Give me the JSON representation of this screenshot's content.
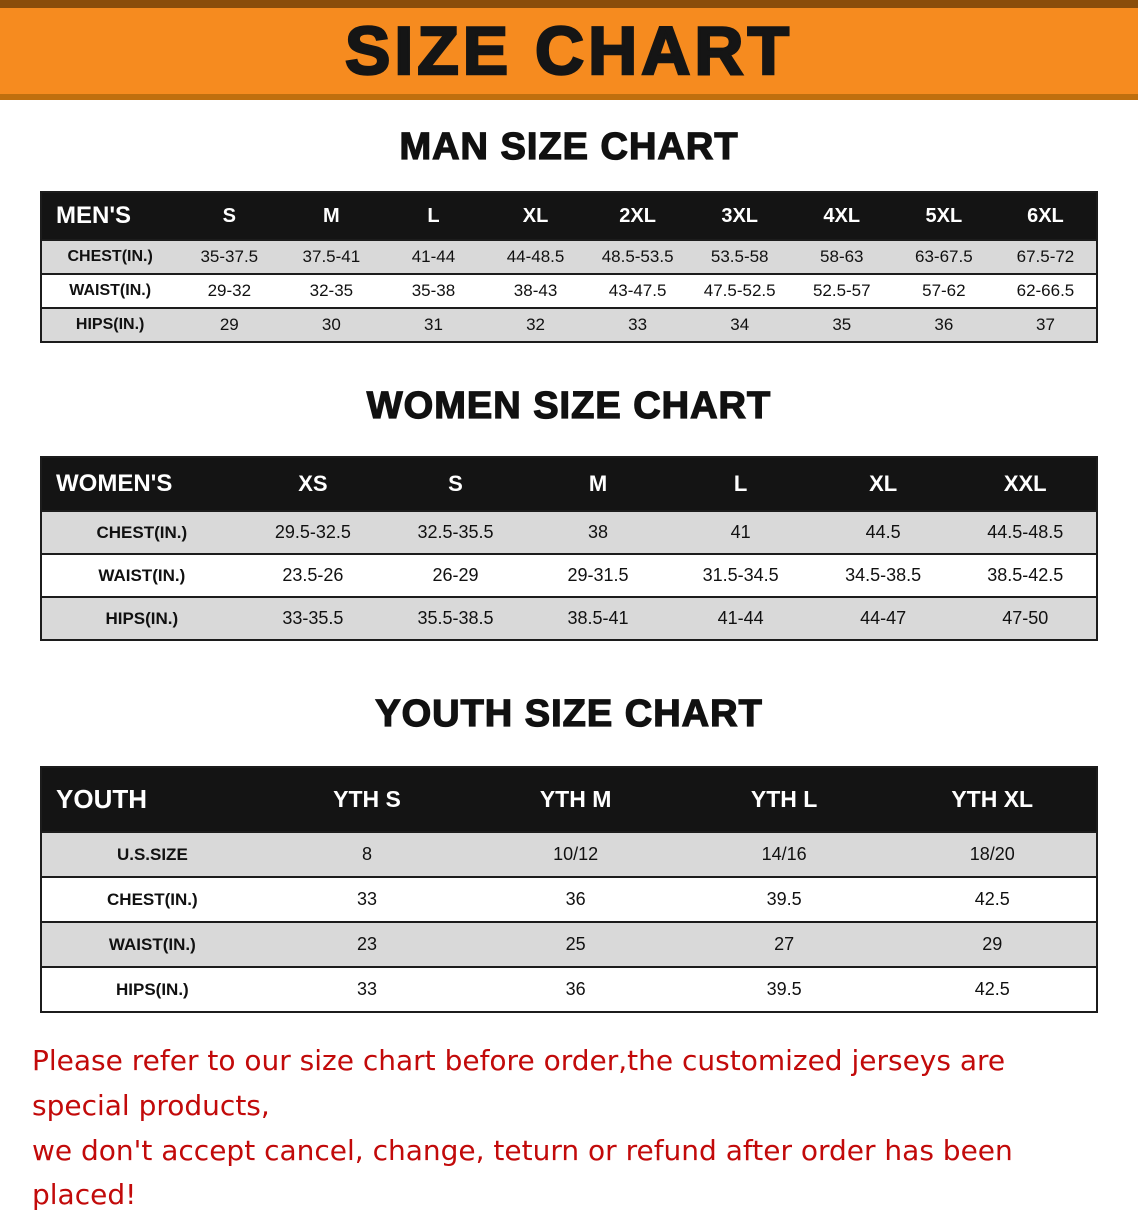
{
  "banner": {
    "title": "SIZE CHART"
  },
  "colors": {
    "banner_bg": "#f68b1f",
    "table_header_bg": "#141414",
    "row_shade": "#d9d9d9",
    "disclaimer_red": "#c20a0a"
  },
  "sections": [
    {
      "id": "men",
      "heading": "MAN SIZE CHART",
      "table": {
        "header": [
          "MEN'S",
          "S",
          "M",
          "L",
          "XL",
          "2XL",
          "3XL",
          "4XL",
          "5XL",
          "6XL"
        ],
        "rows": [
          {
            "label": "CHEST(IN.)",
            "values": [
              "35-37.5",
              "37.5-41",
              "41-44",
              "44-48.5",
              "48.5-53.5",
              "53.5-58",
              "58-63",
              "63-67.5",
              "67.5-72"
            ]
          },
          {
            "label": "WAIST(IN.)",
            "values": [
              "29-32",
              "32-35",
              "35-38",
              "38-43",
              "43-47.5",
              "47.5-52.5",
              "52.5-57",
              "57-62",
              "62-66.5"
            ]
          },
          {
            "label": "HIPS(IN.)",
            "values": [
              "29",
              "30",
              "31",
              "32",
              "33",
              "34",
              "35",
              "36",
              "37"
            ]
          }
        ]
      }
    },
    {
      "id": "women",
      "heading": "WOMEN SIZE CHART",
      "table": {
        "header": [
          "WOMEN'S",
          "XS",
          "S",
          "M",
          "L",
          "XL",
          "XXL"
        ],
        "rows": [
          {
            "label": "CHEST(IN.)",
            "values": [
              "29.5-32.5",
              "32.5-35.5",
              "38",
              "41",
              "44.5",
              "44.5-48.5"
            ]
          },
          {
            "label": "WAIST(IN.)",
            "values": [
              "23.5-26",
              "26-29",
              "29-31.5",
              "31.5-34.5",
              "34.5-38.5",
              "38.5-42.5"
            ]
          },
          {
            "label": "HIPS(IN.)",
            "values": [
              "33-35.5",
              "35.5-38.5",
              "38.5-41",
              "41-44",
              "44-47",
              "47-50"
            ]
          }
        ]
      }
    },
    {
      "id": "youth",
      "heading": "YOUTH SIZE CHART",
      "table": {
        "header": [
          "YOUTH",
          "YTH S",
          "YTH M",
          "YTH L",
          "YTH XL"
        ],
        "rows": [
          {
            "label": "U.S.SIZE",
            "values": [
              "8",
              "10/12",
              "14/16",
              "18/20"
            ]
          },
          {
            "label": "CHEST(IN.)",
            "values": [
              "33",
              "36",
              "39.5",
              "42.5"
            ]
          },
          {
            "label": "WAIST(IN.)",
            "values": [
              "23",
              "25",
              "27",
              "29"
            ]
          },
          {
            "label": "HIPS(IN.)",
            "values": [
              "33",
              "36",
              "39.5",
              "42.5"
            ]
          }
        ]
      }
    }
  ],
  "disclaimer": {
    "line1": "Please refer to our size chart before order,the customized jerseys are special products,",
    "line2": "we don't accept cancel, change, teturn or refund after order has been placed!"
  }
}
